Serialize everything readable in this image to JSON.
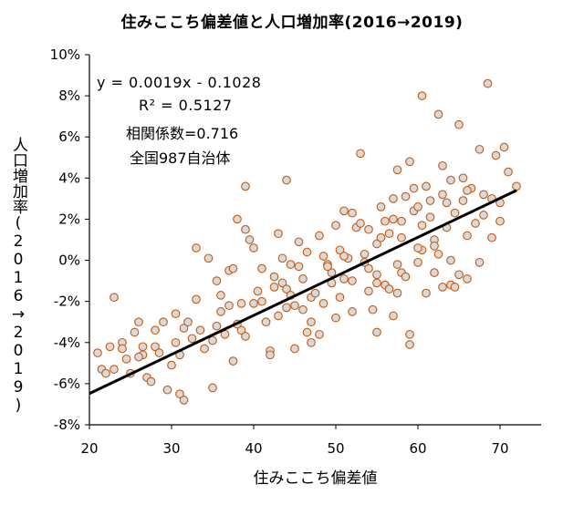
{
  "chart_data": {
    "type": "scatter",
    "title": "住みここち偏差値と人口増加率(2016→2019)",
    "xlabel": "住みここち偏差値",
    "ylabel": "人口増加率(2016→2019)",
    "xlim": [
      20,
      75
    ],
    "ylim": [
      -8,
      10
    ],
    "x_ticks": [
      "20",
      "30",
      "40",
      "50",
      "60",
      "70"
    ],
    "y_ticks": [
      "10%",
      "8%",
      "6%",
      "4%",
      "2%",
      "0%",
      "-2%",
      "-4%",
      "-6%",
      "-8%"
    ],
    "grid": false,
    "legend": "none",
    "marker": {
      "fill": "#d9d9d9",
      "edge": "#c55a11"
    },
    "trendline": {
      "color": "#000000",
      "slope": 0.0019,
      "intercept": -0.1028,
      "x_range": [
        20,
        72
      ]
    },
    "annotations": {
      "equation": "y = 0.0019x - 0.1028",
      "r_squared": "R² = 0.5127",
      "correlation": "相関係数=0.716",
      "sample": "全国987自治体"
    },
    "series": [
      {
        "x": [
          21.0,
          21.5,
          23.0,
          22.5,
          24.0,
          25.5,
          26.5,
          27.0,
          28.0,
          29.0,
          30.5,
          31.0,
          31.5,
          33.0,
          35.0,
          36.0,
          37.0,
          38.5,
          39.0,
          41.0,
          42.5,
          43.5,
          44.0,
          45.5,
          47.0,
          48.5,
          49.5,
          50.5,
          52.0,
          53.5,
          55.0,
          56.5,
          57.5,
          58.0,
          59.5,
          60.5,
          62.0,
          63.5,
          64.5,
          65.5,
          67.0,
          68.0,
          69.0,
          70.0,
          71.0,
          72.0,
          70.5,
          69.5,
          68.5,
          66.5,
          65.0,
          64.0,
          63.0,
          61.0,
          60.0,
          58.5,
          57.0,
          55.5,
          54.0,
          52.5,
          51.0,
          49.0,
          47.5,
          46.0,
          44.5,
          43.0,
          41.5,
          40.0,
          38.0,
          36.5,
          35.5,
          34.0,
          32.5,
          31.0,
          30.0,
          28.5,
          27.5,
          26.0,
          25.0,
          24.5,
          33.5,
          35.0,
          37.5,
          39.0,
          42.0,
          44.0,
          46.5,
          48.0,
          50.0,
          52.0,
          54.0,
          56.0,
          58.0,
          60.0,
          62.0,
          64.0,
          66.0,
          68.0,
          53.0,
          57.5,
          59.0,
          61.5,
          63.5,
          66.0,
          45.0,
          47.0,
          49.5,
          51.5,
          55.0,
          60.5,
          62.5,
          58.5,
          56.5,
          54.5,
          50.5,
          48.5,
          46.0,
          43.5,
          41.0,
          39.5,
          37.0,
          34.5,
          36.0,
          38.5,
          40.5,
          42.5,
          44.5,
          46.5,
          51.0,
          53.0,
          55.5,
          57.0,
          59.5,
          61.5,
          63.0,
          65.5,
          67.5,
          57.0,
          59.0,
          61.0,
          63.0,
          65.0,
          64.0,
          62.0,
          60.0,
          58.0,
          56.0,
          54.0,
          52.0,
          50.0,
          48.0,
          45.5,
          43.0,
          40.0,
          37.5,
          35.5,
          33.0,
          30.5,
          28.0,
          26.5,
          24.0,
          22.0,
          49.0,
          51.0,
          53.5,
          55.0,
          57.5,
          47.0,
          45.0,
          42.0,
          55.0,
          59.0,
          64.5,
          67.5,
          70.0,
          69.0,
          66.0,
          44.0,
          39.0,
          38.0,
          32.0,
          29.5,
          31.5,
          26.0,
          23.0,
          60.5,
          62.5
        ],
        "y": [
          -4.5,
          -5.3,
          -5.3,
          -4.2,
          -4.0,
          -3.5,
          -4.6,
          -5.7,
          -4.2,
          -3.0,
          -4.0,
          -6.5,
          -3.3,
          0.6,
          -3.9,
          -2.5,
          -2.2,
          -3.4,
          3.6,
          -2.0,
          -1.3,
          -1.1,
          -1.4,
          -0.3,
          -1.8,
          0.2,
          -0.6,
          0.5,
          -1.0,
          0.3,
          0.8,
          1.3,
          -0.2,
          1.9,
          2.4,
          1.7,
          1.0,
          2.8,
          2.3,
          2.9,
          1.8,
          3.2,
          3.0,
          2.8,
          4.3,
          3.6,
          5.5,
          5.1,
          8.6,
          3.5,
          6.6,
          3.9,
          4.6,
          3.6,
          2.6,
          3.1,
          2.0,
          1.1,
          -0.4,
          1.6,
          -0.9,
          -0.2,
          -1.6,
          -2.4,
          -1.7,
          -2.7,
          -3.0,
          -2.1,
          -3.1,
          -3.6,
          -3.2,
          -4.3,
          -3.8,
          -4.6,
          -5.1,
          -4.5,
          -5.9,
          -4.7,
          -5.5,
          -4.8,
          -3.4,
          -6.2,
          -4.9,
          -3.7,
          -4.4,
          -2.3,
          -3.5,
          -3.6,
          -2.8,
          -2.5,
          -1.5,
          -1.2,
          -0.6,
          -0.1,
          0.7,
          0.0,
          1.2,
          2.2,
          5.2,
          4.4,
          4.8,
          2.1,
          1.6,
          3.4,
          -2.2,
          -3.0,
          -1.1,
          0.1,
          -0.7,
          0.5,
          0.3,
          -0.8,
          -1.4,
          -2.4,
          -1.8,
          -2.1,
          -0.9,
          0.1,
          -0.4,
          1.0,
          -0.5,
          0.1,
          -1.7,
          -2.1,
          -1.5,
          -0.8,
          -0.2,
          0.4,
          2.4,
          1.8,
          2.6,
          3.0,
          3.5,
          2.9,
          3.2,
          4.0,
          5.4,
          -2.7,
          -3.6,
          -1.6,
          -1.3,
          -0.7,
          -1.2,
          -0.6,
          0.6,
          1.1,
          1.9,
          1.5,
          2.3,
          1.7,
          1.2,
          0.9,
          1.3,
          0.6,
          -0.4,
          -1.0,
          -1.9,
          -2.6,
          -3.4,
          -4.2,
          -4.3,
          -5.5,
          -0.3,
          0.2,
          -0.1,
          -1.1,
          -1.6,
          -4.0,
          -4.3,
          -4.6,
          -3.5,
          -4.1,
          -1.3,
          -0.1,
          1.9,
          1.1,
          -0.9,
          3.9,
          1.5,
          2.0,
          -3.0,
          -6.3,
          -6.8,
          -3.0,
          -1.8,
          8.0,
          7.1
        ]
      }
    ]
  }
}
